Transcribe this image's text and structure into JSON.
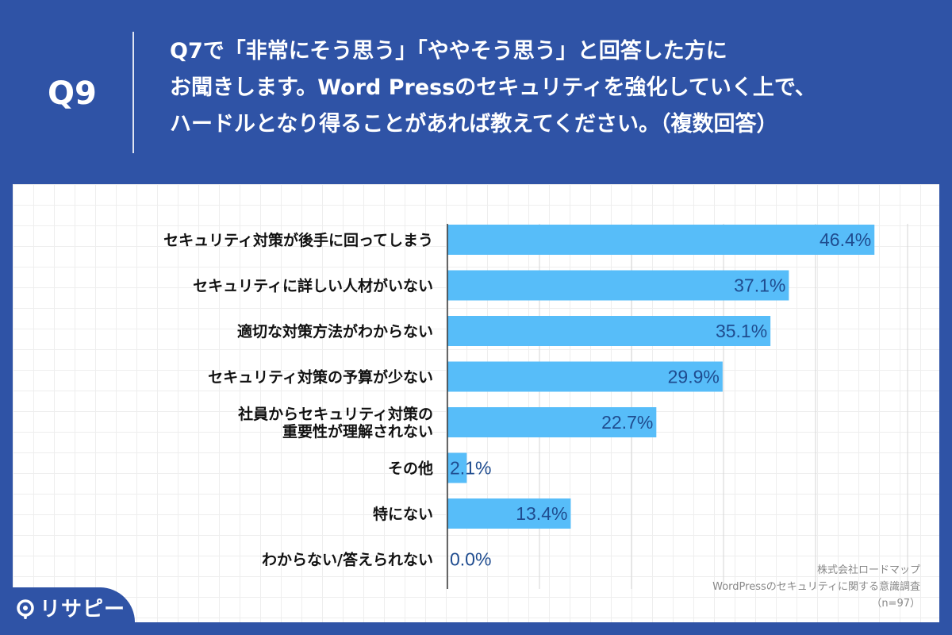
{
  "header": {
    "question_number": "Q9",
    "question_lines": [
      "Q7で「非常にそう思う」「ややそう思う」と回答した方に",
      "お聞きします。Word Pressのセキュリティを強化していく上で、",
      "ハードルとなり得ることがあれば教えてください。（複数回答）"
    ]
  },
  "source": {
    "company": "株式会社ロードマップ",
    "survey": "WordPressのセキュリティに関する意識調査",
    "sample": "（n=97）"
  },
  "logo": {
    "text": "リサピー",
    "icon": "pin-icon"
  },
  "colors": {
    "background": "#2f53a6",
    "bar": "#57bdf9",
    "value_text": "#1f4c8f",
    "label_text": "#111111"
  },
  "chart_data": {
    "type": "bar",
    "orientation": "horizontal",
    "categories": [
      [
        "セキュリティ対策が後手に回ってしまう"
      ],
      [
        "セキュリティに詳しい人材がいない"
      ],
      [
        "適切な対策方法がわからない"
      ],
      [
        "セキュリティ対策の予算が少ない"
      ],
      [
        "社員からセキュリティ対策の",
        "重要性が理解されない"
      ],
      [
        "その他"
      ],
      [
        "特にない"
      ],
      [
        "わからない/答えられない"
      ]
    ],
    "values": [
      46.4,
      37.1,
      35.1,
      29.9,
      22.7,
      2.1,
      13.4,
      0.0
    ],
    "value_labels": [
      "46.4%",
      "37.1%",
      "35.1%",
      "29.9%",
      "22.7%",
      "2.1%",
      "13.4%",
      "0.0%"
    ],
    "xlim": [
      0,
      50
    ],
    "grid": true,
    "legend": "none"
  }
}
